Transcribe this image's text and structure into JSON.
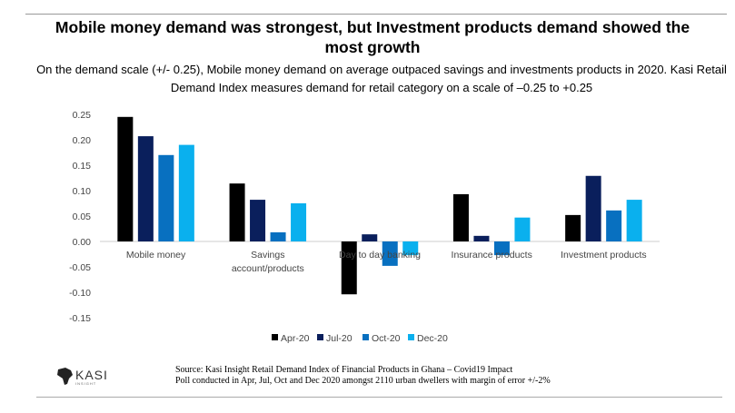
{
  "title": "Mobile money demand was strongest, but Investment products demand showed the most growth",
  "subtitle": "On the demand scale (+/- 0.25), Mobile money demand on average outpaced savings and investments products in 2020. Kasi Retail Demand Index measures demand for retail category on a scale of –0.25 to +0.25",
  "chart_data": {
    "type": "bar",
    "categories": [
      "Mobile money",
      "Savings account/products",
      "Day to day banking",
      "Insurance products",
      "Investment products"
    ],
    "series": [
      {
        "name": "Apr-20",
        "color": "#000000",
        "values": [
          0.245,
          0.114,
          -0.104,
          0.093,
          0.052
        ]
      },
      {
        "name": "Jul-20",
        "color": "#0a1f5c",
        "values": [
          0.207,
          0.082,
          0.014,
          0.011,
          0.129
        ]
      },
      {
        "name": "Oct-20",
        "color": "#0870c0",
        "values": [
          0.17,
          0.018,
          -0.048,
          -0.027,
          0.061
        ]
      },
      {
        "name": "Dec-20",
        "color": "#0ab0ee",
        "values": [
          0.19,
          0.075,
          -0.027,
          0.047,
          0.082
        ]
      }
    ],
    "yticks": [
      "0.25",
      "0.20",
      "0.15",
      "0.10",
      "0.05",
      "0.00",
      "-0.05",
      "-0.10",
      "-0.15"
    ],
    "ylim": [
      -0.15,
      0.25
    ],
    "grid": false,
    "legend": "bottom"
  },
  "source": {
    "line1": "Source: Kasi Insight  Retail Demand Index of  Financial Products in Ghana – Covid19 Impact",
    "line2": "Poll conducted in Apr, Jul, Oct and Dec 2020 amongst 2110 urban dwellers with margin of error +/-2%"
  },
  "logo": {
    "text": "KASI",
    "tagline": "INSIGHT"
  }
}
